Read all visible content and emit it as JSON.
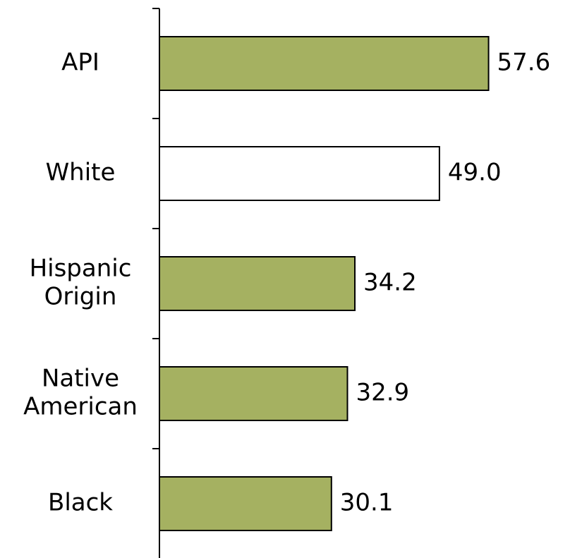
{
  "chart_data": {
    "type": "bar",
    "orientation": "horizontal",
    "title": "",
    "xlabel": "",
    "ylabel": "",
    "categories": [
      [
        "API"
      ],
      [
        "White"
      ],
      [
        "Hispanic",
        "Origin"
      ],
      [
        "Native",
        "American"
      ],
      [
        "Black"
      ]
    ],
    "values": [
      57.6,
      49.0,
      34.2,
      32.9,
      30.1
    ],
    "value_labels": [
      "57.6",
      "49.0",
      "34.2",
      "32.9",
      "30.1"
    ],
    "bar_colors": [
      "#a5b161",
      "#ffffff",
      "#a5b161",
      "#a5b161",
      "#a5b161"
    ],
    "bar_stroke": "#000000",
    "xlim": [
      0,
      68
    ],
    "grid": false,
    "legend": "none"
  }
}
